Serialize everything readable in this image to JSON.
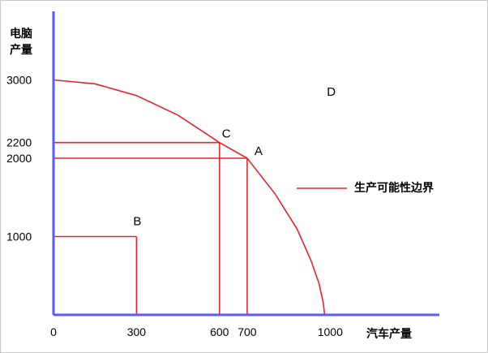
{
  "chart_data": {
    "type": "line",
    "title": "",
    "xlabel": "汽车产量",
    "ylabel": "电脑产量",
    "xlim": [
      0,
      1100
    ],
    "ylim": [
      0,
      3400
    ],
    "x_ticks": [
      "0",
      "300",
      "600",
      "700",
      "1000"
    ],
    "y_ticks": [
      "3000",
      "2200",
      "2000",
      "1000"
    ],
    "series": [
      {
        "name": "生产可能性边界",
        "points": [
          [
            0,
            3000
          ],
          [
            150,
            2950
          ],
          [
            300,
            2800
          ],
          [
            450,
            2550
          ],
          [
            600,
            2200
          ],
          [
            700,
            2000
          ],
          [
            800,
            1550
          ],
          [
            880,
            1100
          ],
          [
            930,
            700
          ],
          [
            960,
            400
          ],
          [
            975,
            150
          ],
          [
            980,
            0
          ]
        ]
      }
    ],
    "annotations": [
      {
        "label": "A",
        "x": 700,
        "y": 2000
      },
      {
        "label": "B",
        "x": 300,
        "y": 1000
      },
      {
        "label": "C",
        "x": 600,
        "y": 2200
      },
      {
        "label": "D",
        "x": 1000,
        "y": 2800
      }
    ],
    "curve_label": "生产可能性边界",
    "colors": {
      "axis": "#5b5bff",
      "curve": "#e8242b",
      "text": "#000000"
    }
  }
}
